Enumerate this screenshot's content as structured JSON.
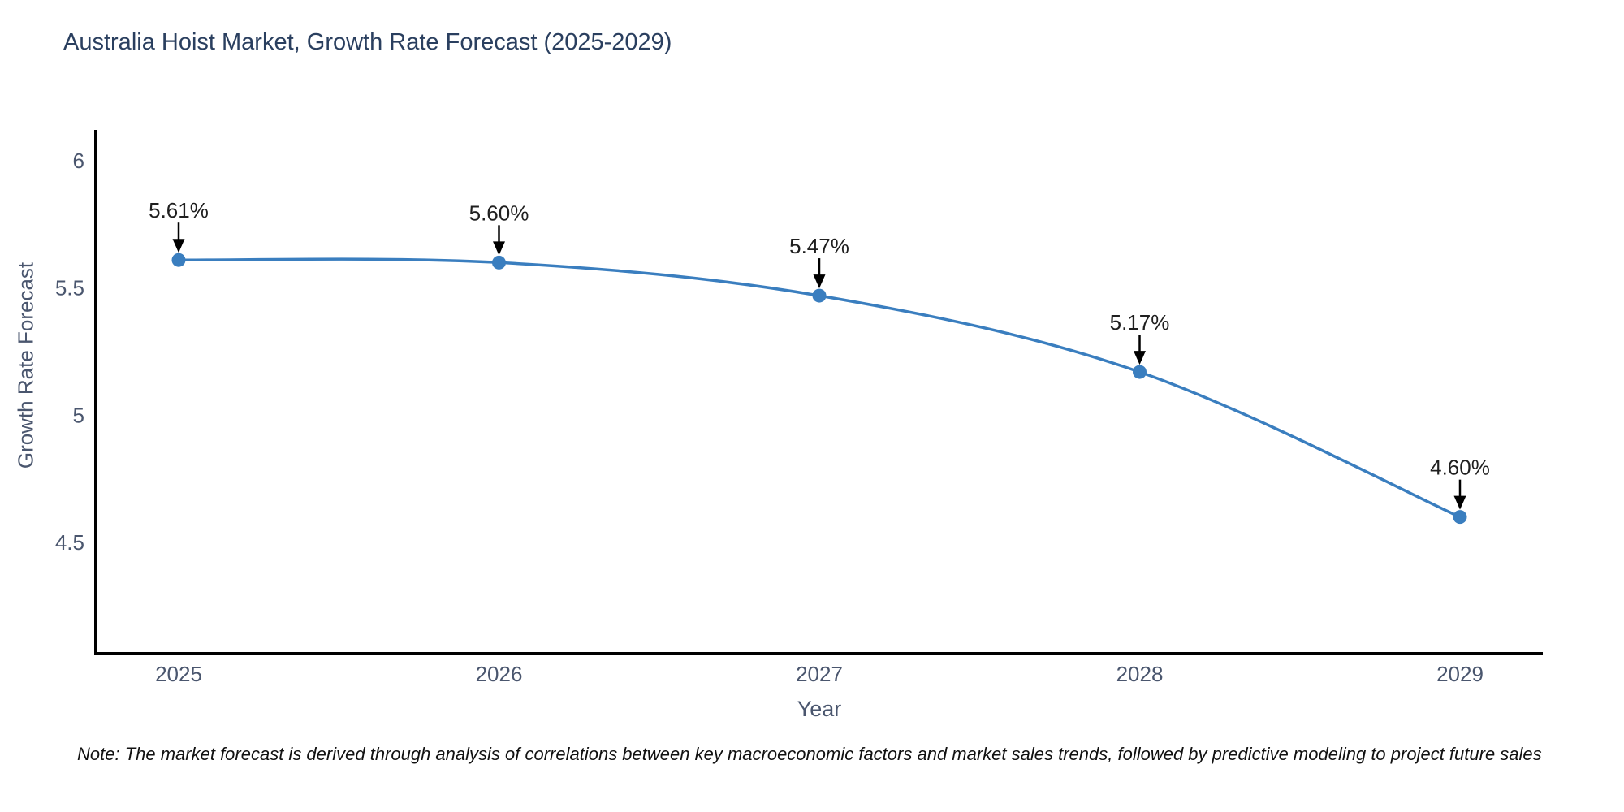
{
  "title": {
    "text": "Australia Hoist Market, Growth Rate Forecast (2025-2029)",
    "color": "#2a3f5f"
  },
  "note": {
    "text": "Note: The market forecast is derived through analysis of correlations between key macroeconomic factors and market sales trends, followed by predictive modeling to project future sales",
    "color": "#111111"
  },
  "chart_data": {
    "type": "line",
    "title": "Australia Hoist Market, Growth Rate Forecast (2025-2029)",
    "xlabel": "Year",
    "ylabel": "Growth Rate Forecast",
    "x": [
      2025,
      2026,
      2027,
      2028,
      2029
    ],
    "x_tick_labels": [
      "2025",
      "2026",
      "2027",
      "2028",
      "2029"
    ],
    "series": [
      {
        "name": "Growth Rate Forecast",
        "values": [
          5.61,
          5.6,
          5.47,
          5.17,
          4.6
        ],
        "point_labels": [
          "5.61%",
          "5.60%",
          "5.47%",
          "5.17%",
          "4.60%"
        ]
      }
    ],
    "yticks": [
      6,
      5.5,
      5,
      4.5
    ],
    "ytick_labels": [
      "6",
      "5.5",
      "5",
      "4.5"
    ],
    "ylim": [
      4.07,
      6.12
    ],
    "grid": false,
    "legend_position": "none",
    "line_color": "#3a7ebf",
    "marker_color": "#3a7ebf",
    "annotation_color": "#1f1f1f",
    "arrow_color": "#000000",
    "axis_color": "#000000",
    "tick_color": "#4a566e",
    "smooth": true
  }
}
